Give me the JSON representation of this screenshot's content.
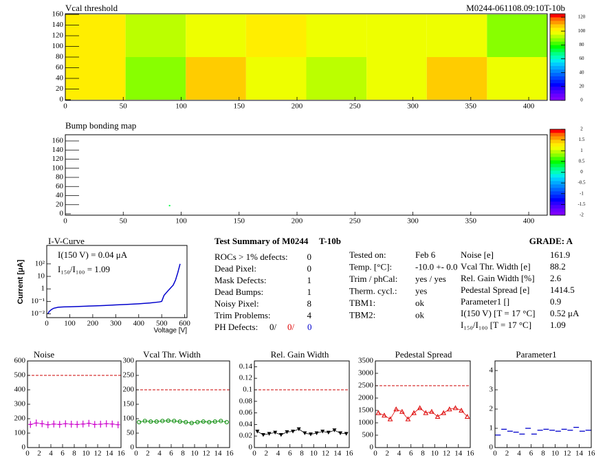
{
  "chart_data": [
    {
      "type": "heatmap",
      "title": "Vcal threshold",
      "label": "M0244-061108.09:10T-10b",
      "xlim": [
        0,
        416
      ],
      "ylim": [
        0,
        160
      ],
      "xticks": [
        0,
        50,
        100,
        150,
        200,
        250,
        300,
        350,
        400
      ],
      "yticks": [
        0,
        20,
        40,
        60,
        80,
        100,
        120,
        140,
        160
      ],
      "xbins": [
        0,
        52,
        104,
        156,
        208,
        260,
        312,
        364,
        416
      ],
      "ybins": [
        0,
        80,
        160
      ],
      "values": [
        [
          104,
          88,
          106,
          98,
          94,
          97,
          109,
          97
        ],
        [
          101,
          93,
          98,
          103,
          97,
          98,
          96,
          86
        ]
      ],
      "zlim": [
        0,
        125
      ],
      "zticks": [
        0,
        20,
        40,
        60,
        80,
        100,
        120
      ],
      "palette": [
        "#7f00ff",
        "#6a00ff",
        "#4c00ff",
        "#2a00ff",
        "#0000ff",
        "#0022ff",
        "#0044ff",
        "#0066ff",
        "#0088ff",
        "#00aaff",
        "#00ccff",
        "#00eeee",
        "#00ffbb",
        "#00ff88",
        "#00ff44",
        "#00ff00",
        "#44ff00",
        "#88ff00",
        "#bbff00",
        "#eeff00",
        "#ffee00",
        "#ffcc00",
        "#ff9900",
        "#ff6600",
        "#ff0000"
      ]
    },
    {
      "type": "hitmap",
      "title": "Bump bonding map",
      "xlim": [
        0,
        416
      ],
      "ylim": [
        0,
        160
      ],
      "xticks": [
        0,
        50,
        100,
        150,
        200,
        250,
        300,
        350,
        400
      ],
      "yticks": [
        0,
        20,
        40,
        60,
        80,
        100,
        120,
        140,
        160
      ],
      "x": [
        90
      ],
      "y": [
        18
      ],
      "values": [
        0.3
      ],
      "zlim": [
        -2,
        2
      ],
      "zticks": [
        -2,
        -1.5,
        -1,
        -0.5,
        0,
        0.5,
        1,
        1.5,
        2
      ],
      "palette": [
        "#7f00ff",
        "#6a00ff",
        "#4c00ff",
        "#2a00ff",
        "#0000ff",
        "#0022ff",
        "#0044ff",
        "#0066ff",
        "#0088ff",
        "#00aaff",
        "#00ccff",
        "#00eeee",
        "#00ffbb",
        "#00ff88",
        "#00ff44",
        "#00ff00",
        "#44ff00",
        "#88ff00",
        "#bbff00",
        "#eeff00",
        "#ffee00",
        "#ffcc00",
        "#ff9900",
        "#ff6600",
        "#ff0000"
      ]
    },
    {
      "type": "line",
      "title": "I-V-Curve",
      "x_label": "Voltage [V]",
      "y_label": "Current [μA]",
      "log": true,
      "annotations": [
        "I(150 V) = 0.04 μA",
        "I₁₅₀/I₁₀₀ =  1.09"
      ],
      "xlim": [
        0,
        610
      ],
      "ylim": [
        0.005,
        3000
      ],
      "xticks": [
        0,
        100,
        200,
        300,
        400,
        500,
        600
      ],
      "yticks": [
        {
          "value": 0.01,
          "label": "10⁻²"
        },
        {
          "value": 0.1,
          "label": "10⁻¹"
        },
        {
          "value": 1,
          "label": "1"
        },
        {
          "value": 10,
          "label": "10"
        },
        {
          "value": 100,
          "label": "10²"
        }
      ],
      "x": [
        5,
        10,
        20,
        30,
        50,
        75,
        100,
        150,
        200,
        250,
        300,
        350,
        400,
        450,
        490,
        500,
        510,
        530,
        550,
        560,
        570,
        580
      ],
      "series": [
        {
          "color": "#0000cc",
          "values": [
            0.01,
            0.015,
            0.022,
            0.028,
            0.034,
            0.036,
            0.037,
            0.04,
            0.043,
            0.047,
            0.052,
            0.057,
            0.064,
            0.075,
            0.09,
            0.1,
            0.3,
            0.8,
            2,
            5,
            20,
            100
          ]
        }
      ]
    },
    {
      "type": "line",
      "title": "Noise",
      "marker": "plus",
      "reference_line": 500,
      "reference_color": "#cc0000",
      "xlim": [
        0,
        16
      ],
      "ylim": [
        0,
        600
      ],
      "xticks": [
        0,
        2,
        4,
        6,
        8,
        10,
        12,
        14,
        16
      ],
      "yticks": [
        0,
        100,
        200,
        300,
        400,
        500,
        600
      ],
      "x": [
        0.5,
        1.5,
        2.5,
        3.5,
        4.5,
        5.5,
        6.5,
        7.5,
        8.5,
        9.5,
        10.5,
        11.5,
        12.5,
        13.5,
        14.5,
        15.5
      ],
      "series": [
        {
          "color": "#cc00cc",
          "values": [
            160,
            170,
            165,
            158,
            163,
            160,
            165,
            162,
            160,
            163,
            168,
            160,
            162,
            165,
            163,
            158
          ]
        }
      ]
    },
    {
      "type": "line",
      "title": "Vcal Thr. Width",
      "marker": "circle",
      "reference_line": 200,
      "reference_color": "#cc0000",
      "xlim": [
        0,
        16
      ],
      "ylim": [
        0,
        300
      ],
      "xticks": [
        0,
        2,
        4,
        6,
        8,
        10,
        12,
        14,
        16
      ],
      "yticks": [
        0,
        50,
        100,
        150,
        200,
        250,
        300
      ],
      "x": [
        0.5,
        1.5,
        2.5,
        3.5,
        4.5,
        5.5,
        6.5,
        7.5,
        8.5,
        9.5,
        10.5,
        11.5,
        12.5,
        13.5,
        14.5,
        15.5
      ],
      "series": [
        {
          "color": "#008800",
          "values": [
            88,
            92,
            90,
            90,
            92,
            93,
            92,
            90,
            88,
            85,
            88,
            90,
            88,
            90,
            92,
            88
          ]
        }
      ]
    },
    {
      "type": "line",
      "title": "Rel. Gain Width",
      "marker": "triangle-down",
      "reference_line": 0.1,
      "reference_color": "#cc0000",
      "xlim": [
        0,
        16
      ],
      "ylim": [
        0,
        0.15
      ],
      "xticks": [
        0,
        2,
        4,
        6,
        8,
        10,
        12,
        14,
        16
      ],
      "yticks": [
        0,
        0.02,
        0.04,
        0.06,
        0.08,
        0.1,
        0.12,
        0.14
      ],
      "x": [
        0.5,
        1.5,
        2.5,
        3.5,
        4.5,
        5.5,
        6.5,
        7.5,
        8.5,
        9.5,
        10.5,
        11.5,
        12.5,
        13.5,
        14.5,
        15.5
      ],
      "series": [
        {
          "color": "#000000",
          "values": [
            0.028,
            0.022,
            0.024,
            0.026,
            0.022,
            0.027,
            0.028,
            0.032,
            0.025,
            0.023,
            0.025,
            0.028,
            0.026,
            0.03,
            0.025,
            0.024
          ]
        }
      ]
    },
    {
      "type": "line",
      "title": "Pedestal Spread",
      "marker": "triangle-up",
      "reference_line": 2500,
      "reference_color": "#cc0000",
      "xlim": [
        0,
        16
      ],
      "ylim": [
        0,
        3500
      ],
      "xticks": [
        0,
        2,
        4,
        6,
        8,
        10,
        12,
        14,
        16
      ],
      "yticks": [
        0,
        500,
        1000,
        1500,
        2000,
        2500,
        3000,
        3500
      ],
      "x": [
        0.5,
        1.5,
        2.5,
        3.5,
        4.5,
        5.5,
        6.5,
        7.5,
        8.5,
        9.5,
        10.5,
        11.5,
        12.5,
        13.5,
        14.5,
        15.5
      ],
      "series": [
        {
          "color": "#dd0000",
          "values": [
            1400,
            1300,
            1150,
            1550,
            1450,
            1150,
            1400,
            1600,
            1400,
            1450,
            1250,
            1400,
            1550,
            1600,
            1500,
            1250
          ]
        }
      ]
    },
    {
      "type": "scatter",
      "title": "Parameter1",
      "marker": "hbar",
      "xlim": [
        0,
        16
      ],
      "ylim": [
        0,
        4.5
      ],
      "xticks": [
        0,
        2,
        4,
        6,
        8,
        10,
        12,
        14,
        16
      ],
      "yticks": [
        0,
        1,
        2,
        3,
        4
      ],
      "x": [
        0.5,
        1.5,
        2.5,
        3.5,
        4.5,
        5.5,
        6.5,
        7.5,
        8.5,
        9.5,
        10.5,
        11.5,
        12.5,
        13.5,
        14.5,
        15.5
      ],
      "series": [
        {
          "color": "#0000cc",
          "values": [
            0.65,
            0.95,
            0.85,
            0.8,
            0.7,
            1.0,
            0.7,
            0.9,
            0.95,
            0.9,
            0.85,
            0.95,
            0.9,
            1.05,
            0.85,
            0.9
          ]
        }
      ]
    }
  ],
  "summary": {
    "title": "Test Summary of M0244",
    "tag": "T-10b",
    "grade": "GRADE:  A",
    "left": [
      [
        "ROCs > 1% defects:",
        "0"
      ],
      [
        "Dead Pixel:",
        "0"
      ],
      [
        "Mask Defects:",
        "1"
      ],
      [
        "Dead Bumps:",
        "1"
      ],
      [
        "Noisy Pixel:",
        "8"
      ],
      [
        "Trim Problems:",
        "4"
      ]
    ],
    "ph_label": "PH Defects:",
    "ph_values": [
      "0/",
      "0/",
      "0"
    ],
    "middle": [
      [
        "Tested on:",
        "Feb 6"
      ],
      [
        "Temp. [°C]:",
        "-10.0 +- 0.0"
      ],
      [
        "Trim / phCal:",
        "yes / yes"
      ],
      [
        "Therm. cycl.:",
        "yes"
      ],
      [
        "TBM1:",
        "ok"
      ],
      [
        "TBM2:",
        "ok"
      ]
    ],
    "right": [
      [
        "Noise [e]",
        "161.9"
      ],
      [
        "Vcal Thr. Width [e]",
        "88.2"
      ],
      [
        "Rel. Gain Width [%]",
        "2.6"
      ],
      [
        "Pedestal Spread [e]",
        "1414.5"
      ],
      [
        "Parameter1 []",
        "0.9"
      ],
      [
        "I(150 V) [T = 17 °C]",
        "0.52 μA"
      ],
      [
        "I₁₅₀/I₁₀₀  [T = 17 °C]",
        "1.09"
      ]
    ]
  }
}
